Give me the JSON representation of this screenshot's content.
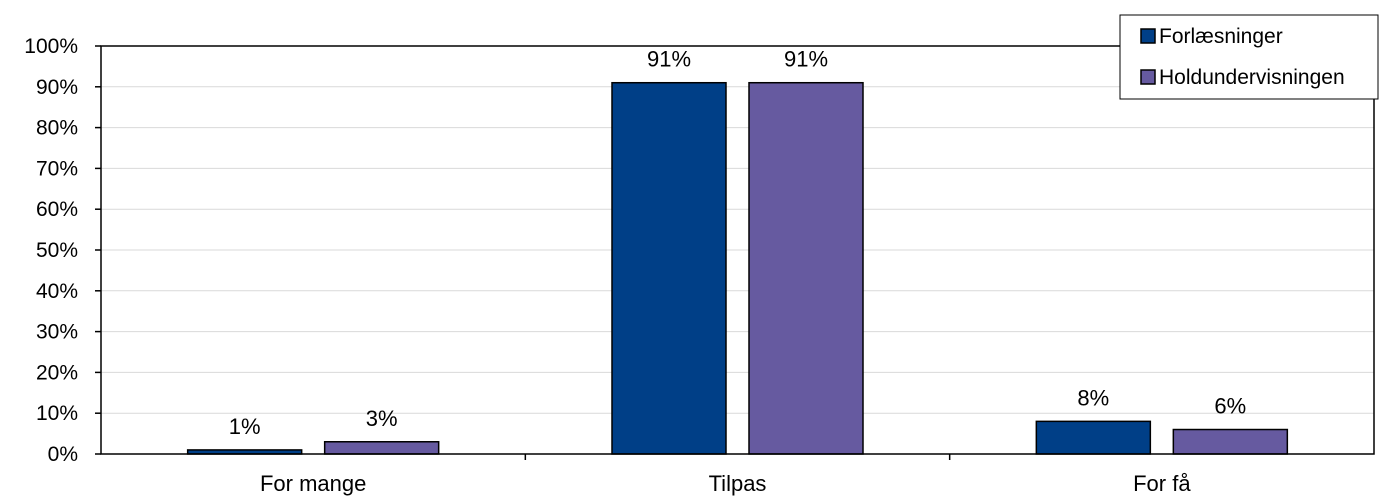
{
  "chart_data": {
    "type": "bar",
    "categories": [
      "For mange",
      "Tilpas",
      "For få"
    ],
    "series": [
      {
        "name": "Forlæsninger",
        "values": [
          1,
          91,
          8
        ],
        "labels": [
          "1%",
          "91%",
          "8%"
        ],
        "color": "#003f87"
      },
      {
        "name": "Holdundervisningen",
        "values": [
          3,
          91,
          6
        ],
        "labels": [
          "3%",
          "91%",
          "6%"
        ],
        "color": "#665aa0"
      }
    ],
    "ylim": [
      0,
      100
    ],
    "yticks": [
      "0%",
      "10%",
      "20%",
      "30%",
      "40%",
      "50%",
      "60%",
      "70%",
      "80%",
      "90%",
      "100%"
    ],
    "grid": true,
    "legend_position": "top-right"
  }
}
